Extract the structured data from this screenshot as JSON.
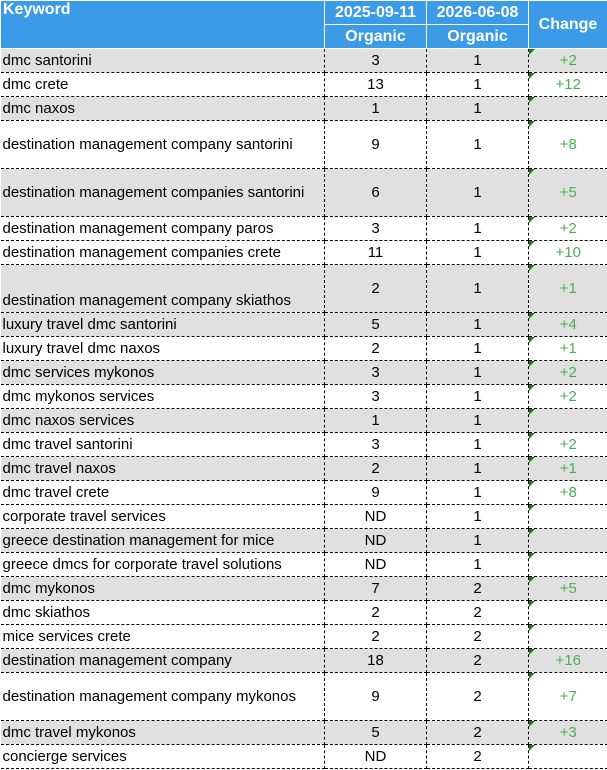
{
  "header": {
    "keyword": "Keyword",
    "date1": "2025-09-11",
    "date2": "2026-06-08",
    "sub1": "Organic",
    "sub2": "Organic",
    "change": "Change"
  },
  "rows": [
    {
      "keyword": "dmc santorini",
      "v1": "3",
      "v2": "1",
      "change": "+2"
    },
    {
      "keyword": "dmc crete",
      "v1": "13",
      "v2": "1",
      "change": "+12"
    },
    {
      "keyword": "dmc naxos",
      "v1": "1",
      "v2": "1",
      "change": ""
    },
    {
      "keyword": "destination management company santorini",
      "v1": "9",
      "v2": "1",
      "change": "+8"
    },
    {
      "keyword": "destination management companies santorini",
      "v1": "6",
      "v2": "1",
      "change": "+5"
    },
    {
      "keyword": "destination management company paros",
      "v1": "3",
      "v2": "1",
      "change": "+2"
    },
    {
      "keyword": "destination management companies crete",
      "v1": "11",
      "v2": "1",
      "change": "+10"
    },
    {
      "keyword": "destination management company skiathos",
      "v1": "2",
      "v2": "1",
      "change": "+1"
    },
    {
      "keyword": "luxury travel dmc santorini",
      "v1": "5",
      "v2": "1",
      "change": "+4"
    },
    {
      "keyword": "luxury travel dmc naxos",
      "v1": "2",
      "v2": "1",
      "change": "+1"
    },
    {
      "keyword": "dmc services mykonos",
      "v1": "3",
      "v2": "1",
      "change": "+2"
    },
    {
      "keyword": "dmc mykonos services",
      "v1": "3",
      "v2": "1",
      "change": "+2"
    },
    {
      "keyword": "dmc naxos services",
      "v1": "1",
      "v2": "1",
      "change": ""
    },
    {
      "keyword": "dmc travel santorini",
      "v1": "3",
      "v2": "1",
      "change": "+2"
    },
    {
      "keyword": "dmc travel naxos",
      "v1": "2",
      "v2": "1",
      "change": "+1"
    },
    {
      "keyword": "dmc travel crete",
      "v1": "9",
      "v2": "1",
      "change": "+8"
    },
    {
      "keyword": "corporate travel services",
      "v1": "ND",
      "v2": "1",
      "change": ""
    },
    {
      "keyword": "greece destination management for mice",
      "v1": "ND",
      "v2": "1",
      "change": ""
    },
    {
      "keyword": "greece dmcs for corporate travel solutions",
      "v1": "ND",
      "v2": "1",
      "change": ""
    },
    {
      "keyword": "dmc mykonos",
      "v1": "7",
      "v2": "2",
      "change": "+5"
    },
    {
      "keyword": "dmc skiathos",
      "v1": "2",
      "v2": "2",
      "change": ""
    },
    {
      "keyword": "mice services crete",
      "v1": "2",
      "v2": "2",
      "change": ""
    },
    {
      "keyword": "destination management company",
      "v1": "18",
      "v2": "2",
      "change": "+16"
    },
    {
      "keyword": "destination management company mykonos",
      "v1": "9",
      "v2": "2",
      "change": "+7"
    },
    {
      "keyword": "dmc travel mykonos",
      "v1": "5",
      "v2": "2",
      "change": "+3"
    },
    {
      "keyword": "concierge services",
      "v1": "ND",
      "v2": "2",
      "change": ""
    }
  ]
}
